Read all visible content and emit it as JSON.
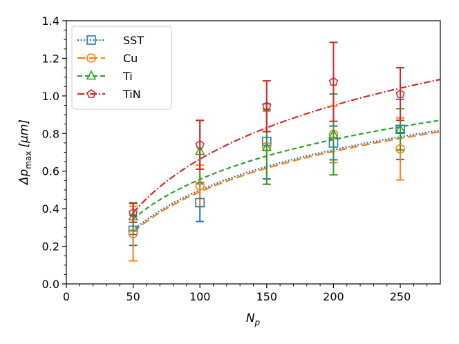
{
  "chart_data": {
    "type": "scatter",
    "title": "",
    "xlabel": "N_p",
    "ylabel": "Δp_max [μm]",
    "xlim": [
      0,
      280
    ],
    "ylim": [
      0.0,
      1.4
    ],
    "xticks": [
      0,
      50,
      100,
      150,
      200,
      250
    ],
    "yticks": [
      0.0,
      0.2,
      0.4,
      0.6,
      0.8,
      1.0,
      1.2,
      1.4
    ],
    "xtick_labels": [
      "0",
      "50",
      "100",
      "150",
      "200",
      "250"
    ],
    "ytick_labels": [
      "0.0",
      "0.2",
      "0.4",
      "0.6",
      "0.8",
      "1.0",
      "1.2",
      "1.4"
    ],
    "x_display_main": "N",
    "x_display_sub": "p",
    "y_display_main": "Δp",
    "y_display_sub": "max",
    "y_display_unit": "[μm]",
    "legend_position": "upper-left",
    "grid": false,
    "series": [
      {
        "name": "SST",
        "color": "#1f77b4",
        "marker": "square",
        "line_style": "dotted",
        "x": [
          50,
          100,
          150,
          200,
          250
        ],
        "y": [
          0.285,
          0.432,
          0.758,
          0.75,
          0.822
        ],
        "err": [
          0.08,
          0.1,
          0.2,
          0.09,
          0.16
        ],
        "fit_a": 0.285,
        "fit_b": 0.309
      },
      {
        "name": "Cu",
        "color": "#ff7f0e",
        "marker": "circle",
        "line_style": "dashed-long",
        "x": [
          50,
          100,
          150,
          200,
          250
        ],
        "y": [
          0.268,
          0.522,
          0.73,
          0.795,
          0.718
        ],
        "err": [
          0.145,
          0.11,
          0.2,
          0.15,
          0.165
        ],
        "fit_a": 0.275,
        "fit_b": 0.31
      },
      {
        "name": "Ti",
        "color": "#2ca02c",
        "marker": "triangle",
        "line_style": "dashed",
        "x": [
          50,
          100,
          150,
          200,
          250
        ],
        "y": [
          0.357,
          0.705,
          0.725,
          0.795,
          0.822
        ],
        "err": [
          0.075,
          0.165,
          0.195,
          0.215,
          0.11
        ],
        "fit_a": 0.345,
        "fit_b": 0.305
      },
      {
        "name": "TiN",
        "color": "#d62728",
        "marker": "pentagon",
        "line_style": "dash-dot",
        "x": [
          50,
          100,
          150,
          200,
          250
        ],
        "y": [
          0.378,
          0.74,
          0.945,
          1.075,
          1.01
        ],
        "err": [
          0.05,
          0.13,
          0.135,
          0.21,
          0.14
        ],
        "fit_a": 0.378,
        "fit_b": 0.412
      }
    ]
  }
}
